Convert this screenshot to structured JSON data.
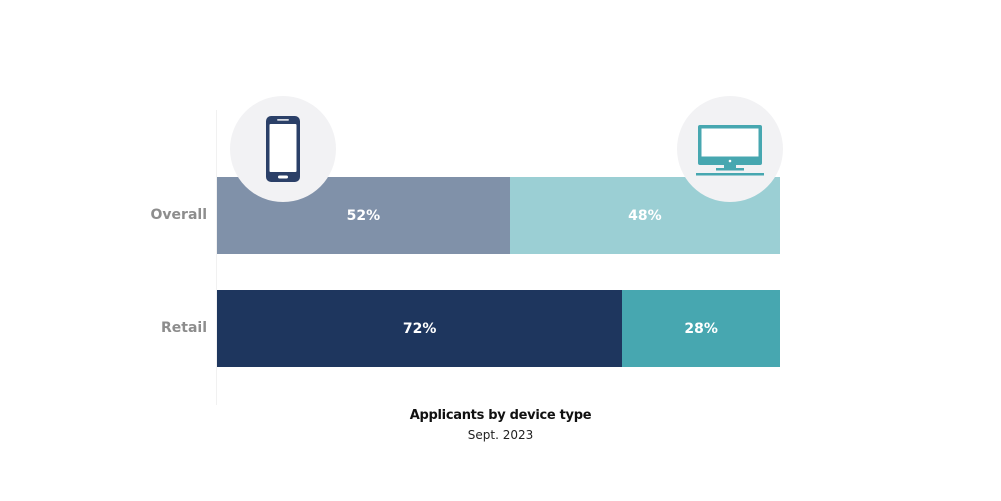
{
  "chart_data": {
    "type": "bar",
    "orientation": "horizontal",
    "stacked": true,
    "normalized": true,
    "title": "Applicants by device type",
    "subtitle": "Sept. 2023",
    "categories": [
      "Overall",
      "Retail"
    ],
    "series": [
      {
        "name": "Mobile",
        "icon": "smartphone-icon",
        "values": [
          52,
          72
        ],
        "labels": [
          "52%",
          "72%"
        ],
        "colors": [
          "#8091a9",
          "#1e365e"
        ]
      },
      {
        "name": "Desktop",
        "icon": "desktop-monitor-icon",
        "values": [
          48,
          28
        ],
        "labels": [
          "48%",
          "28%"
        ],
        "colors": [
          "#9bcfd4",
          "#47a7b0"
        ]
      }
    ],
    "xlim": [
      0,
      100
    ],
    "grid": false,
    "legend": "icons above bars (mobile left, desktop right)"
  },
  "icons": {
    "mobile": {
      "name": "smartphone-icon",
      "color": "#2b4068"
    },
    "desktop": {
      "name": "desktop-monitor-icon",
      "color": "#47a7b0"
    }
  }
}
